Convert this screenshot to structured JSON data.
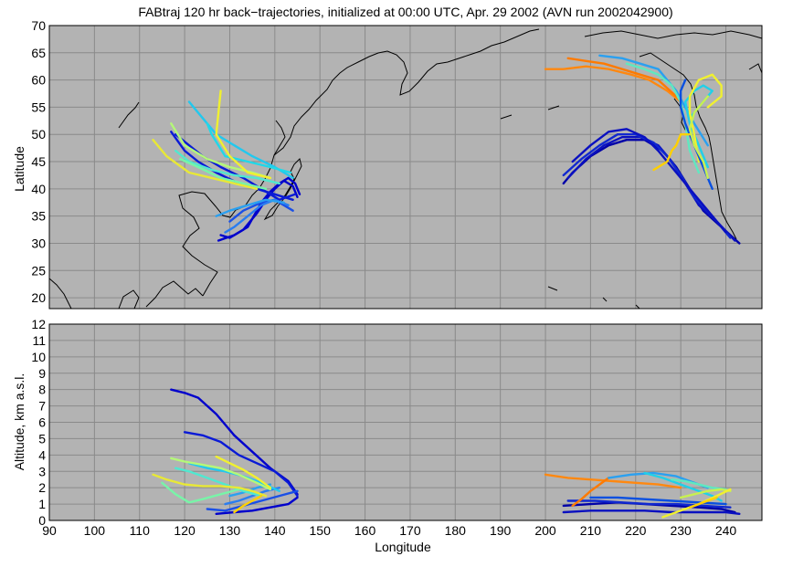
{
  "chart_data": [
    {
      "type": "line",
      "title": "FABtraj 120 hr back−trajectories, initialized at 00:00 UTC, Apr. 29 2002 (AVN run 2002042900)",
      "xlabel": "",
      "ylabel": "Latitude",
      "xlim": [
        90,
        248
      ],
      "ylim": [
        18,
        70
      ],
      "yticks": [
        "20",
        "25",
        "30",
        "35",
        "40",
        "45",
        "50",
        "55",
        "60",
        "65",
        "70"
      ],
      "grid": true,
      "background": "#b3b3b3",
      "series": [
        {
          "color": "#0000cc",
          "x": [
            145.5,
            144.5,
            143,
            141,
            139,
            137,
            134,
            131,
            127.5
          ],
          "y": [
            39,
            41,
            42,
            41,
            39.5,
            37.5,
            33,
            31.5,
            30.5
          ]
        },
        {
          "color": "#0000cc",
          "x": [
            145,
            144,
            142,
            140,
            138,
            136,
            133,
            130,
            128
          ],
          "y": [
            38.5,
            40.5,
            41.5,
            40,
            38,
            35.5,
            32.5,
            31,
            31.5
          ]
        },
        {
          "color": "#0a1ad6",
          "x": [
            144.5,
            141,
            137,
            133,
            128,
            124,
            121,
            118
          ],
          "y": [
            39,
            38,
            40,
            42,
            44,
            46,
            48,
            50
          ]
        },
        {
          "color": "#0a1ad6",
          "x": [
            144,
            140,
            136,
            132,
            127,
            123,
            120,
            117
          ],
          "y": [
            38,
            39,
            40,
            41,
            43,
            45,
            47,
            50.5
          ]
        },
        {
          "color": "#1a4fe6",
          "x": [
            144,
            140,
            137,
            133,
            130
          ],
          "y": [
            36,
            38,
            37.5,
            36,
            34
          ]
        },
        {
          "color": "#2a7df0",
          "x": [
            143,
            140,
            137,
            134,
            131,
            129
          ],
          "y": [
            37,
            38,
            37,
            35,
            33,
            32
          ]
        },
        {
          "color": "#2aa0f0",
          "x": [
            142,
            138,
            134,
            130,
            127
          ],
          "y": [
            37.5,
            38,
            37,
            36,
            35
          ]
        },
        {
          "color": "#22c8ee",
          "x": [
            144,
            140,
            135,
            131,
            127,
            124,
            121
          ],
          "y": [
            42,
            44,
            46,
            48,
            50,
            53,
            56
          ]
        },
        {
          "color": "#20d8e8",
          "x": [
            143.5,
            139,
            134,
            129,
            126,
            125
          ],
          "y": [
            43,
            44,
            45,
            46,
            50,
            52
          ]
        },
        {
          "color": "#50e8d0",
          "x": [
            141,
            136,
            131,
            126,
            121,
            118
          ],
          "y": [
            41,
            42,
            42.5,
            43.5,
            45,
            47
          ]
        },
        {
          "color": "#78f4a8",
          "x": [
            138,
            133,
            128,
            123,
            119
          ],
          "y": [
            40,
            41,
            42,
            44,
            45.5
          ]
        },
        {
          "color": "#b4f878",
          "x": [
            139,
            135,
            130,
            125,
            120,
            117
          ],
          "y": [
            42,
            43,
            44,
            45.5,
            48,
            52
          ]
        },
        {
          "color": "#f0f030",
          "x": [
            139,
            134,
            130,
            127,
            127.5,
            128
          ],
          "y": [
            42,
            43,
            46,
            50,
            54,
            58
          ]
        },
        {
          "color": "#e8e836",
          "x": [
            136,
            131,
            126,
            121,
            116,
            113
          ],
          "y": [
            40,
            41,
            42,
            43,
            46,
            49
          ]
        },
        {
          "color": "#0000a8",
          "x": [
            243,
            239,
            235,
            232,
            229,
            226,
            222,
            218,
            214,
            210,
            206,
            204
          ],
          "y": [
            30,
            33,
            36,
            40,
            44,
            47,
            49,
            49,
            48,
            46,
            43,
            41
          ]
        },
        {
          "color": "#0a10c0",
          "x": [
            242,
            238,
            234,
            231,
            228,
            225,
            221,
            217,
            213,
            209,
            205
          ],
          "y": [
            30.5,
            34,
            37,
            41,
            45,
            48,
            49.5,
            49.5,
            48,
            45.5,
            42
          ]
        },
        {
          "color": "#1028d0",
          "x": [
            241,
            237,
            233,
            230,
            227,
            224,
            220,
            216,
            212,
            208,
            204
          ],
          "y": [
            31,
            35,
            38.5,
            42.5,
            46,
            48.5,
            50,
            50,
            48,
            45.5,
            42.5
          ]
        },
        {
          "color": "#0a10c0",
          "x": [
            240,
            236,
            232,
            228,
            225,
            222,
            218,
            214,
            210,
            206
          ],
          "y": [
            32,
            36,
            40,
            44,
            47,
            49.5,
            51,
            50.5,
            48,
            45
          ]
        },
        {
          "color": "#ff8810",
          "x": [
            230,
            227,
            223,
            219,
            214,
            209,
            204,
            200
          ],
          "y": [
            56,
            58,
            60,
            61,
            62,
            62.5,
            62,
            62
          ]
        },
        {
          "color": "#ff7a00",
          "x": [
            229,
            225,
            221,
            217,
            213,
            209,
            205
          ],
          "y": [
            57,
            60,
            61,
            62,
            63,
            63.5,
            64
          ]
        },
        {
          "color": "#2aa0f0",
          "x": [
            236,
            233,
            231,
            229,
            227,
            225,
            221,
            217,
            212
          ],
          "y": [
            48,
            52,
            55,
            58,
            60,
            62,
            63,
            64,
            64.5
          ]
        },
        {
          "color": "#20d0e8",
          "x": [
            236,
            234,
            232,
            231,
            233,
            235,
            237,
            235,
            232
          ],
          "y": [
            44,
            48,
            52,
            56,
            58,
            59,
            58,
            56,
            53
          ]
        },
        {
          "color": "#f0f030",
          "x": [
            234,
            233,
            232,
            232,
            234,
            237,
            239,
            239,
            236
          ],
          "y": [
            45,
            50,
            54,
            57,
            60,
            61,
            59,
            57,
            55
          ]
        },
        {
          "color": "#60e8c0",
          "x": [
            234,
            232,
            231,
            230,
            228,
            225,
            222,
            218
          ],
          "y": [
            43,
            47,
            52,
            56,
            59,
            61,
            62,
            63
          ]
        },
        {
          "color": "#0a50e0",
          "x": [
            237,
            235,
            233,
            231,
            230,
            230,
            231
          ],
          "y": [
            40,
            44,
            48,
            52,
            55,
            58,
            60
          ]
        },
        {
          "color": "#ffd000",
          "x": [
            232,
            230,
            229,
            228,
            227,
            225,
            224
          ],
          "y": [
            50,
            50,
            48,
            47,
            45,
            44,
            43.5
          ]
        },
        {
          "color": "#c8f050",
          "x": [
            236,
            235,
            233,
            232,
            233,
            235,
            236
          ],
          "y": [
            42,
            45,
            48,
            51,
            54,
            56,
            57
          ]
        }
      ]
    },
    {
      "type": "line",
      "title": "",
      "xlabel": "Longitude",
      "ylabel": "Altitude, km a.s.l.",
      "xlim": [
        90,
        248
      ],
      "ylim": [
        0,
        12
      ],
      "xticks": [
        "90",
        "100",
        "110",
        "120",
        "130",
        "140",
        "150",
        "160",
        "170",
        "180",
        "190",
        "200",
        "210",
        "220",
        "230",
        "240"
      ],
      "yticks": [
        "0",
        "1",
        "2",
        "3",
        "4",
        "5",
        "6",
        "7",
        "8",
        "9",
        "10",
        "11",
        "12"
      ],
      "grid": true,
      "background": "#b3b3b3",
      "series": [
        {
          "color": "#0000cc",
          "x": [
            117,
            120,
            123,
            127,
            131,
            135,
            139,
            143,
            145
          ],
          "y": [
            8,
            7.8,
            7.5,
            6.5,
            5.2,
            4.2,
            3.2,
            2.4,
            1.6
          ]
        },
        {
          "color": "#0a1ad6",
          "x": [
            120,
            124,
            128,
            132,
            136,
            140,
            143,
            145
          ],
          "y": [
            5.4,
            5.2,
            4.8,
            4,
            3.5,
            3,
            2.3,
            1.5
          ]
        },
        {
          "color": "#0000cc",
          "x": [
            127,
            131,
            135,
            139,
            143,
            145
          ],
          "y": [
            0.4,
            0.5,
            0.6,
            0.8,
            1,
            1.4
          ]
        },
        {
          "color": "#1a4fe6",
          "x": [
            125,
            129,
            133,
            137,
            141,
            145
          ],
          "y": [
            0.7,
            0.6,
            0.9,
            1.2,
            1.5,
            1.8
          ]
        },
        {
          "color": "#2a7df0",
          "x": [
            129,
            132,
            135,
            138,
            141
          ],
          "y": [
            1,
            1.2,
            1.5,
            1.8,
            2
          ]
        },
        {
          "color": "#2aa0f0",
          "x": [
            130,
            133,
            136,
            139
          ],
          "y": [
            1.5,
            1.7,
            2,
            2.2
          ]
        },
        {
          "color": "#22c8ee",
          "x": [
            121,
            125,
            129,
            133,
            137,
            141
          ],
          "y": [
            3.5,
            3.2,
            3,
            2.7,
            2.3,
            1.8
          ]
        },
        {
          "color": "#50e8d0",
          "x": [
            118,
            121,
            125,
            129,
            133,
            137
          ],
          "y": [
            3.2,
            3,
            2.6,
            2.2,
            1.8,
            1.5
          ]
        },
        {
          "color": "#78f4a8",
          "x": [
            115,
            118,
            121,
            124,
            128,
            132
          ],
          "y": [
            2.3,
            1.6,
            1.1,
            1.3,
            1.6,
            1.9
          ]
        },
        {
          "color": "#b4f878",
          "x": [
            117,
            120,
            124,
            128,
            132,
            136,
            139
          ],
          "y": [
            3.8,
            3.6,
            3.4,
            3.2,
            2.8,
            2.3,
            1.9
          ]
        },
        {
          "color": "#f0f030",
          "x": [
            127,
            130,
            133,
            136,
            139
          ],
          "y": [
            3.9,
            3.5,
            3.1,
            2.6,
            2
          ]
        },
        {
          "color": "#e8e836",
          "x": [
            113,
            116,
            120,
            124,
            128,
            132,
            135,
            138
          ],
          "y": [
            2.8,
            2.5,
            2.2,
            2.1,
            2.1,
            2,
            1.8,
            1.5
          ]
        },
        {
          "color": "#ffd000",
          "x": [
            131,
            133,
            135,
            137
          ],
          "y": [
            0.5,
            0.9,
            1.2,
            1.5
          ]
        },
        {
          "color": "#0000a8",
          "x": [
            204,
            210,
            216,
            222,
            228,
            234,
            239,
            242
          ],
          "y": [
            0.9,
            1,
            1.1,
            1,
            0.9,
            0.8,
            0.7,
            0.5
          ]
        },
        {
          "color": "#0a10c0",
          "x": [
            204,
            210,
            216,
            222,
            228,
            234,
            240,
            243
          ],
          "y": [
            0.5,
            0.6,
            0.6,
            0.6,
            0.5,
            0.5,
            0.5,
            0.4
          ]
        },
        {
          "color": "#1028d0",
          "x": [
            205,
            211,
            217,
            223,
            229,
            235,
            241
          ],
          "y": [
            1.2,
            1.2,
            1.1,
            1,
            1,
            0.9,
            0.8
          ]
        },
        {
          "color": "#0a50e0",
          "x": [
            210,
            216,
            222,
            228,
            234,
            240
          ],
          "y": [
            1.4,
            1.4,
            1.3,
            1.2,
            1.1,
            1
          ]
        },
        {
          "color": "#ff8810",
          "x": [
            200,
            205,
            210,
            215,
            220,
            225,
            230
          ],
          "y": [
            2.8,
            2.6,
            2.5,
            2.4,
            2.3,
            2.2,
            2
          ]
        },
        {
          "color": "#ff7a00",
          "x": [
            206,
            208,
            210,
            212,
            214
          ],
          "y": [
            0.9,
            1.3,
            1.8,
            2.2,
            2.6
          ]
        },
        {
          "color": "#2aa0f0",
          "x": [
            214,
            219,
            224,
            229,
            233,
            236
          ],
          "y": [
            2.6,
            2.8,
            2.9,
            2.7,
            2.3,
            2
          ]
        },
        {
          "color": "#20d0e8",
          "x": [
            222,
            226,
            230,
            234,
            237,
            239
          ],
          "y": [
            2.9,
            2.6,
            2.2,
            1.8,
            1.5,
            1.2
          ]
        },
        {
          "color": "#60e8c0",
          "x": [
            228,
            231,
            234,
            237,
            240
          ],
          "y": [
            2.5,
            2.4,
            2.2,
            2,
            1.9
          ]
        },
        {
          "color": "#c8f050",
          "x": [
            230,
            233,
            236,
            239,
            241
          ],
          "y": [
            1.4,
            1.6,
            1.8,
            1.9,
            1.8
          ]
        },
        {
          "color": "#f0f030",
          "x": [
            226,
            230,
            234,
            238,
            241
          ],
          "y": [
            0.2,
            0.6,
            1,
            1.5,
            1.9
          ]
        },
        {
          "color": "#ffd000",
          "x": [
            232,
            235,
            238
          ],
          "y": [
            0.8,
            1.1,
            1.4
          ]
        }
      ]
    }
  ]
}
